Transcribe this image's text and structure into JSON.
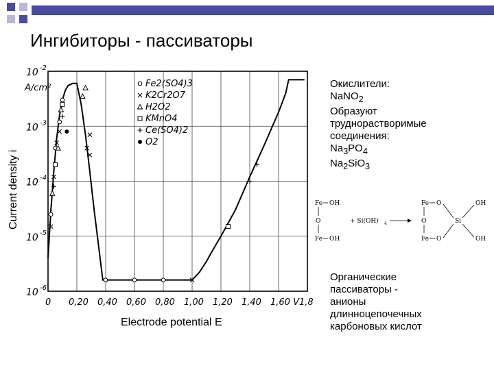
{
  "slide": {
    "title": "Ингибиторы - пассиваторы",
    "accent_color": "#3a3a8c"
  },
  "side_text": {
    "lines": [
      "Окислители:",
      "NaNO2",
      "Образуют",
      "труднорастворимые",
      "соединения:",
      "Na3PO4",
      "Na2SiO3"
    ],
    "formulas_rich": [
      {
        "base": "NaNO",
        "sub": "2"
      },
      {
        "base": "Na",
        "sub": "3",
        "base2": "PO",
        "sub2": "4"
      },
      {
        "base": "Na",
        "sub": "2",
        "base2": "SiO",
        "sub2": "3"
      }
    ]
  },
  "reaction": {
    "left_top": "Fe",
    "left_top_oh": "OH",
    "left_mid": "O",
    "plus": "+ Si(OH)",
    "plus_sub": "4",
    "left_bot": "Fe",
    "left_bot_oh": "OH",
    "right_top_fe": "Fe",
    "right_top_o": "O",
    "right_top_oh": "OH",
    "right_mid_o": "O",
    "right_mid_si": "Si",
    "right_bot_fe": "Fe",
    "right_bot_o": "O",
    "right_bot_oh": "OH"
  },
  "organic_text": {
    "lines": [
      "Органические",
      "пассиваторы  -",
      "анионы",
      "длинноцепочечных",
      "карбоновых кислот"
    ]
  },
  "chart_data": {
    "type": "line",
    "xlabel": "Electrode potential E",
    "ylabel": "Current density i",
    "x_unit": "V",
    "y_unit": "A/cm²",
    "y_scale": "log",
    "xlim": [
      0,
      1.8
    ],
    "ylim": [
      1e-06,
      0.01
    ],
    "x_ticks": [
      "0",
      "0,20",
      "0,40",
      "0,60",
      "0,80",
      "1,00",
      "1,20",
      "1,40",
      "1,60 V",
      "1,8"
    ],
    "x_tick_values": [
      0,
      0.2,
      0.4,
      0.6,
      0.8,
      1.0,
      1.2,
      1.4,
      1.6,
      1.8
    ],
    "y_ticks": [
      {
        "value": 0.01,
        "base": "10",
        "exp": "-2"
      },
      {
        "value": 0.001,
        "base": "10",
        "exp": "-3"
      },
      {
        "value": 0.0001,
        "base": "10",
        "exp": "-4"
      },
      {
        "value": 1e-05,
        "base": "10",
        "exp": "-5"
      },
      {
        "value": 1e-06,
        "base": "10",
        "exp": "-6"
      }
    ],
    "y_unit_label": "A/cm²",
    "grid": true,
    "legend_placement": "top-right",
    "legend": [
      {
        "marker": "circle-open",
        "label": "Fe2(SO4)3"
      },
      {
        "marker": "x",
        "label": "K2Cr2O7"
      },
      {
        "marker": "triangle",
        "label": "H2O2"
      },
      {
        "marker": "square",
        "label": "KMnO4"
      },
      {
        "marker": "plus",
        "label": "Ce(SO4)2"
      },
      {
        "marker": "circle-filled",
        "label": "O2"
      }
    ],
    "series": [
      {
        "x": [
          0.0,
          0.02,
          0.04,
          0.06,
          0.08,
          0.1,
          0.12,
          0.14,
          0.17,
          0.2,
          0.23,
          0.26,
          0.29,
          0.32,
          0.35,
          0.38,
          0.4,
          0.6,
          0.8,
          1.0,
          1.05,
          1.1,
          1.15,
          1.2,
          1.3,
          1.4,
          1.5,
          1.6,
          1.65,
          1.67,
          1.78
        ],
        "y": [
          4e-06,
          3e-05,
          0.00015,
          0.0006,
          0.0016,
          0.003,
          0.0045,
          0.0055,
          0.006,
          0.006,
          0.0025,
          0.0007,
          0.00015,
          3e-05,
          7e-06,
          1.6e-06,
          1.6e-06,
          1.6e-06,
          1.6e-06,
          1.6e-06,
          2.2e-06,
          3.5e-06,
          6e-06,
          1e-05,
          3e-05,
          0.00012,
          0.00045,
          0.0018,
          0.004,
          0.007,
          0.007
        ]
      }
    ],
    "points": [
      {
        "m": "circle-open",
        "x": 0.02,
        "y": 2.5e-05
      },
      {
        "m": "circle-open",
        "x": 0.05,
        "y": 0.0004
      },
      {
        "m": "circle-open",
        "x": 0.08,
        "y": 0.0012
      },
      {
        "m": "circle-open",
        "x": 0.1,
        "y": 0.003
      },
      {
        "m": "circle-open",
        "x": 0.4,
        "y": 1.6e-06
      },
      {
        "m": "circle-open",
        "x": 0.6,
        "y": 1.6e-06
      },
      {
        "m": "circle-open",
        "x": 0.8,
        "y": 1.6e-06
      },
      {
        "m": "x",
        "x": 0.02,
        "y": 1.5e-05
      },
      {
        "m": "x",
        "x": 0.04,
        "y": 0.00012
      },
      {
        "m": "x",
        "x": 0.06,
        "y": 0.0005
      },
      {
        "m": "x",
        "x": 0.08,
        "y": 0.0008
      },
      {
        "m": "x",
        "x": 0.27,
        "y": 0.0004
      },
      {
        "m": "x",
        "x": 0.29,
        "y": 0.0003
      },
      {
        "m": "x",
        "x": 0.29,
        "y": 0.0007
      },
      {
        "m": "x",
        "x": 1.0,
        "y": 1.6e-06
      },
      {
        "m": "triangle",
        "x": 0.03,
        "y": 6e-05
      },
      {
        "m": "triangle",
        "x": 0.07,
        "y": 0.0004
      },
      {
        "m": "triangle",
        "x": 0.09,
        "y": 0.002
      },
      {
        "m": "triangle",
        "x": 0.24,
        "y": 0.0035
      },
      {
        "m": "triangle",
        "x": 0.26,
        "y": 0.005
      },
      {
        "m": "square",
        "x": 0.05,
        "y": 0.0002
      },
      {
        "m": "square",
        "x": 0.1,
        "y": 0.0025
      },
      {
        "m": "square",
        "x": 1.25,
        "y": 1.5e-05
      },
      {
        "m": "plus",
        "x": 0.04,
        "y": 8e-05
      },
      {
        "m": "plus",
        "x": 0.1,
        "y": 0.0015
      },
      {
        "m": "plus",
        "x": 1.4,
        "y": 0.0001
      },
      {
        "m": "plus",
        "x": 1.45,
        "y": 0.0002
      },
      {
        "m": "circle-filled",
        "x": 0.13,
        "y": 0.0008
      }
    ]
  }
}
